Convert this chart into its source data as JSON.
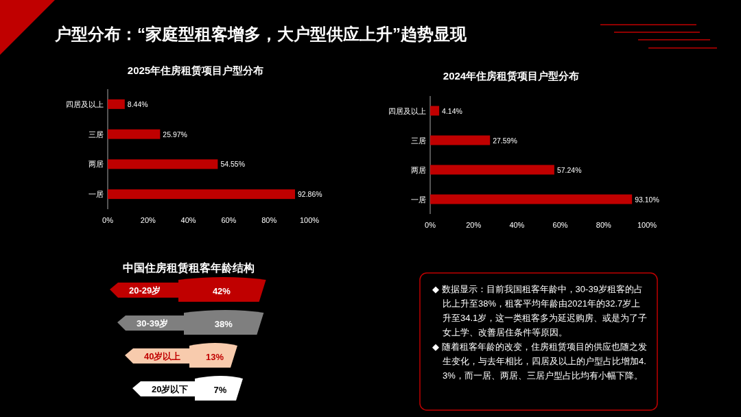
{
  "chart_data": [
    {
      "type": "other",
      "title": "户型分布：“家庭型租客增多，大户型供应上升”趋势显现"
    },
    {
      "type": "bar",
      "orientation": "horizontal",
      "title": "2025年住房租赁项目户型分布",
      "categories": [
        "四居及以上",
        "三居",
        "两居",
        "一居"
      ],
      "values": [
        8.44,
        25.97,
        54.55,
        92.86
      ],
      "color": "#c00000",
      "value_labels": [
        "8.44%",
        "25.97%",
        "54.55%",
        "92.86%"
      ],
      "xlim": [
        0,
        100
      ],
      "xticks": [
        {
          "value": 0,
          "label": "0%"
        },
        {
          "value": 20,
          "label": "20%"
        },
        {
          "value": 40,
          "label": "40%"
        },
        {
          "value": 60,
          "label": "60%"
        },
        {
          "value": 80,
          "label": "80%"
        },
        {
          "value": 100,
          "label": "100%"
        }
      ],
      "grid": false
    },
    {
      "type": "bar",
      "orientation": "horizontal",
      "title": "2024年住房租赁项目户型分布",
      "categories": [
        "四居及以上",
        "三居",
        "两居",
        "一居"
      ],
      "values": [
        4.14,
        27.59,
        57.24,
        93.1
      ],
      "color": "#c00000",
      "value_labels": [
        "4.14%",
        "27.59%",
        "57.24%",
        "93.10%"
      ],
      "xlim": [
        0,
        100
      ],
      "xticks": [
        {
          "value": 0,
          "label": "0%"
        },
        {
          "value": 20,
          "label": "20%"
        },
        {
          "value": 40,
          "label": "40%"
        },
        {
          "value": 60,
          "label": "60%"
        },
        {
          "value": 80,
          "label": "80%"
        },
        {
          "value": 100,
          "label": "100%"
        }
      ],
      "grid": false
    },
    {
      "type": "other",
      "title": "中国住房租赁租客年龄结构",
      "categories": [
        "20-29岁",
        "30-39岁",
        "40岁以上",
        "20岁以下"
      ],
      "values": [
        42,
        38,
        13,
        7
      ],
      "value_labels": [
        "42%",
        "38%",
        "13%",
        "7%"
      ],
      "colors": [
        "#c00000",
        "#7f7f7f",
        "#f8cbad",
        "#ffffff"
      ]
    },
    {
      "type": "other",
      "annotations": [
        "◆ 数据显示：目前我国租客年龄中，30-39岁租客的占比上升至38%，租客平均年龄由2021年的32.7岁上升至34.1岁，这一类租客多为延迟购房、或是为了子女上学、改善居住条件等原因。",
        "◆ 随着租客年龄的改变，住房租赁项目的供应也随之发生变化，与去年相比，四居及以上的户型占比增加4.3%，而一居、两居、三居户型占比均有小幅下降。"
      ]
    }
  ]
}
